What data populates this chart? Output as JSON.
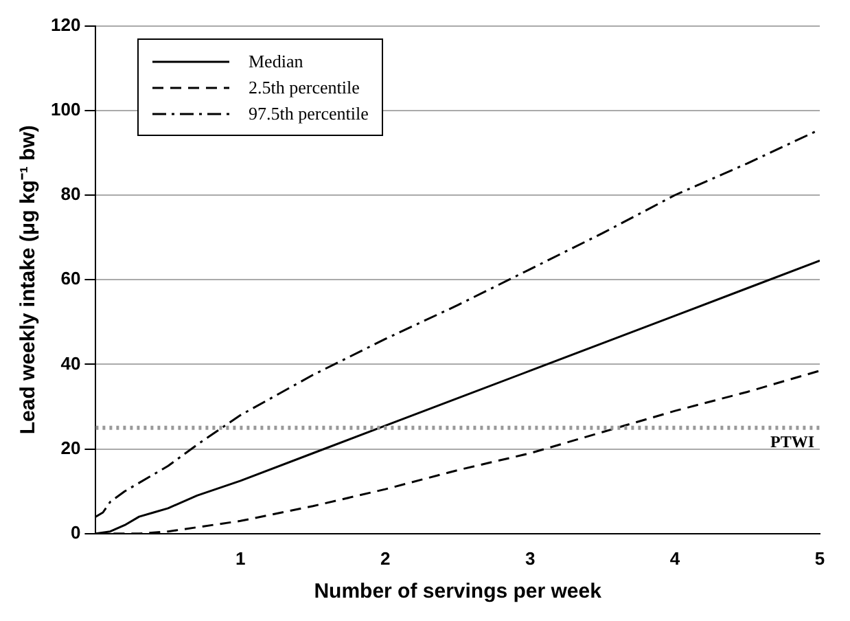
{
  "chart_data": {
    "type": "line",
    "xlabel": "Number of servings per week",
    "ylabel": "Lead weekly intake (μg kg⁻¹ bw)",
    "xlim": [
      0,
      5
    ],
    "xticks": [
      1,
      2,
      3,
      4,
      5
    ],
    "ylim": [
      0,
      120
    ],
    "yticks": [
      0,
      20,
      40,
      60,
      80,
      100,
      120
    ],
    "grid": "y",
    "legend": "top left",
    "marker": "none",
    "series": [
      {
        "name": "Median",
        "color": "#000000",
        "line_style": "solid",
        "x": [
          0,
          0.1,
          0.2,
          0.3,
          0.4,
          0.5,
          0.7,
          1,
          1.5,
          2,
          2.5,
          3,
          3.5,
          4,
          4.5,
          5
        ],
        "values": [
          0,
          0.5,
          2,
          4,
          5,
          6,
          9,
          12.5,
          19,
          25.5,
          32,
          38.5,
          45,
          51.5,
          58,
          64.5
        ]
      },
      {
        "name": "2.5th percentile",
        "color": "#000000",
        "line_style": "dashed",
        "x": [
          0,
          0.3,
          0.5,
          0.7,
          1,
          1.5,
          2,
          2.5,
          3,
          3.5,
          4,
          4.5,
          5
        ],
        "values": [
          0,
          0,
          0.5,
          1.5,
          3,
          6.5,
          10.5,
          15,
          19,
          24,
          29,
          33.5,
          38.5
        ]
      },
      {
        "name": "97.5th percentile",
        "color": "#000000",
        "line_style": "dashdot",
        "x": [
          0,
          0.05,
          0.1,
          0.2,
          0.3,
          0.5,
          0.7,
          1,
          1.5,
          2,
          2.5,
          3,
          3.5,
          4,
          4.5,
          5
        ],
        "values": [
          4,
          5,
          7.5,
          10,
          12,
          16,
          21,
          28,
          37.5,
          46,
          54,
          62.5,
          71,
          80,
          87.5,
          95.5
        ]
      }
    ],
    "ref_lines": [
      {
        "axis": "y",
        "value": 25,
        "label": "PTWI",
        "color": "#999999",
        "line_style": "dotted"
      }
    ]
  }
}
